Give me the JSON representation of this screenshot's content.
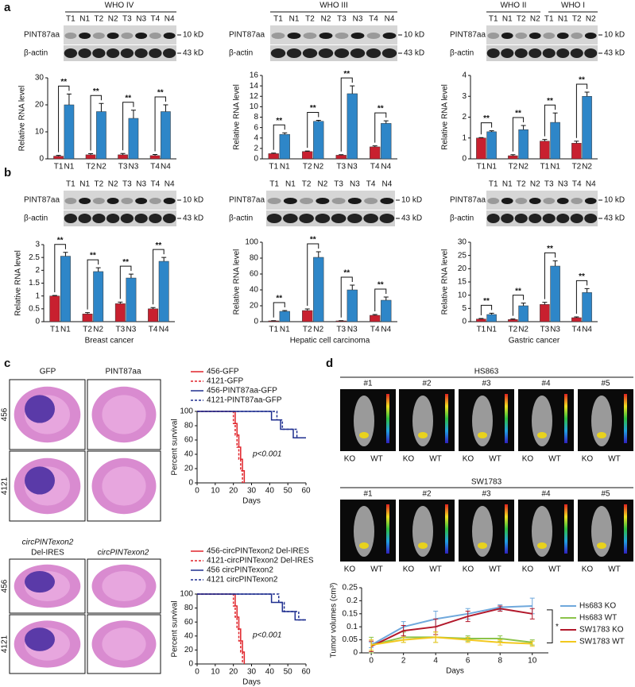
{
  "figure": {
    "panels": [
      "a",
      "b",
      "c",
      "d"
    ],
    "who": [
      "WHO IV",
      "WHO III",
      "WHO II",
      "WHO I"
    ],
    "blots": [
      {
        "lanes": [
          "T1",
          "N1",
          "T2",
          "N2",
          "T3",
          "N3",
          "T4",
          "N4"
        ],
        "rows": [
          "PINT87aa",
          "β-actin"
        ],
        "sizes": [
          "10 kD",
          "43 kD"
        ]
      },
      {
        "lanes": [
          "T1",
          "N1",
          "T2",
          "N2",
          "T3",
          "N3",
          "T4",
          "N4"
        ],
        "rows": [
          "PINT87aa",
          "β-actin"
        ],
        "sizes": [
          "10 kD",
          "43 kD"
        ]
      },
      {
        "lanes": [
          "T1",
          "N1",
          "T2",
          "N2",
          "T1",
          "N1",
          "T2",
          "N2"
        ],
        "rows": [
          "PINT87aa",
          "β-actin"
        ],
        "sizes": [
          "10 kD",
          "43 kD"
        ]
      },
      {
        "lanes": [
          "T1",
          "N1",
          "T2",
          "N2",
          "T3",
          "N3",
          "T4",
          "N4"
        ],
        "rows": [
          "PINT87aa",
          "β-actin"
        ],
        "sizes": [
          "10 kD",
          "43 kD"
        ]
      },
      {
        "lanes": [
          "T1",
          "N1",
          "T2",
          "N2",
          "T3",
          "N3",
          "T4",
          "N4"
        ],
        "rows": [
          "PINT87aa",
          "β-actin"
        ],
        "sizes": [
          "10 kD",
          "43 kD"
        ]
      },
      {
        "lanes": [
          "T1",
          "N1",
          "T2",
          "N2",
          "T3",
          "N3",
          "T4",
          "N4"
        ],
        "rows": [
          "PINT87aa",
          "β-actin"
        ],
        "sizes": [
          "10 kD",
          "43 kD"
        ]
      }
    ],
    "brains": {
      "cols": [
        "GFP",
        "PINT87aa"
      ],
      "rows": [
        "456",
        "4121"
      ],
      "cols2": [
        "circPINTexon2",
        "Del-IRES",
        "circPINTexon2"
      ]
    },
    "mice": {
      "groups": [
        "HS863",
        "SW1783"
      ],
      "ids": [
        "#1",
        "#2",
        "#3",
        "#4",
        "#5"
      ],
      "labels": [
        "KO",
        "WT"
      ]
    }
  },
  "chart_data": [
    {
      "type": "bar",
      "ylabel": "Relative RNA level",
      "categories": [
        "T1",
        "N1",
        "T2",
        "N2",
        "T3",
        "N3",
        "T4",
        "N4"
      ],
      "values": [
        1,
        20,
        1.5,
        17.5,
        1.5,
        15,
        1.2,
        17.5
      ],
      "errors": [
        0.3,
        4,
        0.4,
        3,
        0.5,
        3,
        0.4,
        2.5
      ],
      "colors": [
        "#c8202f",
        "#2e86c8"
      ],
      "annotations": [
        "**",
        "**",
        "**",
        "**"
      ],
      "ylim": [
        0,
        30
      ],
      "yticks": [
        0,
        10,
        20,
        30
      ]
    },
    {
      "type": "bar",
      "ylabel": "Relative RNA level",
      "categories": [
        "T1",
        "N1",
        "T2",
        "N2",
        "T3",
        "N3",
        "T4",
        "N4"
      ],
      "values": [
        1,
        4.7,
        1.4,
        7.2,
        0.7,
        12.5,
        2.3,
        6.8
      ],
      "errors": [
        0.1,
        0.3,
        0.1,
        0.2,
        0.1,
        1.5,
        0.2,
        0.5
      ],
      "colors": [
        "#c8202f",
        "#2e86c8"
      ],
      "annotations": [
        "**",
        "**",
        "**",
        "**"
      ],
      "ylim": [
        0,
        16
      ],
      "yticks": [
        0,
        2,
        4,
        6,
        8,
        10,
        12,
        14,
        16
      ]
    },
    {
      "type": "bar",
      "ylabel": "Relative RNA level",
      "categories": [
        "T1",
        "N1",
        "T2",
        "N2",
        "T1",
        "N1",
        "T2",
        "N2"
      ],
      "values": [
        1,
        1.3,
        0.15,
        1.4,
        0.85,
        1.75,
        0.75,
        3
      ],
      "errors": [
        0.02,
        0.05,
        0.05,
        0.2,
        0.08,
        0.45,
        0.1,
        0.2
      ],
      "colors": [
        "#c8202f",
        "#2e86c8"
      ],
      "annotations": [
        "**",
        "**",
        "**",
        "**"
      ],
      "ylim": [
        0,
        4
      ],
      "yticks": [
        0,
        1,
        2,
        3,
        4
      ]
    },
    {
      "type": "bar",
      "ylabel": "Relative RNA level",
      "xlabel": "Breast cancer",
      "categories": [
        "T1",
        "N1",
        "T2",
        "N2",
        "T3",
        "N3",
        "T4",
        "N4"
      ],
      "values": [
        1,
        2.55,
        0.3,
        1.95,
        0.7,
        1.7,
        0.5,
        2.35
      ],
      "errors": [
        0.02,
        0.15,
        0.05,
        0.15,
        0.06,
        0.15,
        0.05,
        0.15
      ],
      "colors": [
        "#c8202f",
        "#2e86c8"
      ],
      "annotations": [
        "**",
        "**",
        "**",
        "**"
      ],
      "ylim": [
        0,
        3
      ],
      "yticks": [
        0,
        0.5,
        1,
        1.5,
        2,
        2.5,
        3
      ]
    },
    {
      "type": "bar",
      "ylabel": "Relative RNA level",
      "xlabel": "Hepatic cell carcinoma",
      "categories": [
        "T1",
        "N1",
        "T2",
        "N2",
        "T3",
        "N3",
        "T4",
        "N4"
      ],
      "values": [
        1,
        13,
        14,
        81,
        1,
        40,
        8,
        27
      ],
      "errors": [
        0.3,
        1,
        2,
        7,
        0.3,
        6,
        1,
        4
      ],
      "colors": [
        "#c8202f",
        "#2e86c8"
      ],
      "annotations": [
        "**",
        "**",
        "**",
        "**"
      ],
      "ylim": [
        0,
        100
      ],
      "yticks": [
        0,
        20,
        40,
        60,
        80,
        100
      ]
    },
    {
      "type": "bar",
      "ylabel": "Relative RNA level",
      "xlabel": "Gastric cancer",
      "categories": [
        "T1",
        "N1",
        "T2",
        "N2",
        "T3",
        "N3",
        "T4",
        "N4"
      ],
      "values": [
        1,
        2.7,
        0.8,
        6,
        6.5,
        21,
        1.5,
        11
      ],
      "errors": [
        0.2,
        0.5,
        0.2,
        1,
        0.8,
        2,
        0.3,
        1.5
      ],
      "colors": [
        "#c8202f",
        "#2e86c8"
      ],
      "annotations": [
        "**",
        "**",
        "**",
        "**"
      ],
      "ylim": [
        0,
        30
      ],
      "yticks": [
        0,
        5,
        10,
        15,
        20,
        25,
        30
      ]
    },
    {
      "type": "step",
      "ylabel": "Percent survival",
      "xlabel": "Days",
      "annotation": "p<0.001",
      "xlim": [
        0,
        60
      ],
      "xticks": [
        0,
        10,
        20,
        30,
        40,
        50,
        60
      ],
      "ylim": [
        0,
        100
      ],
      "yticks": [
        0,
        20,
        40,
        60,
        80,
        100
      ],
      "series": [
        {
          "name": "456-GFP",
          "color": "#e0242b",
          "style": "solid",
          "x": [
            0,
            21,
            22,
            23,
            24,
            25,
            26
          ],
          "values": [
            100,
            83,
            67,
            50,
            33,
            17,
            0
          ]
        },
        {
          "name": "4121-GFP",
          "color": "#e0242b",
          "style": "dashed",
          "x": [
            0,
            20,
            21,
            22,
            23,
            24,
            25
          ],
          "values": [
            100,
            83,
            67,
            50,
            33,
            17,
            0
          ]
        },
        {
          "name": "456-PINT87aa-GFP",
          "color": "#1f2f8f",
          "style": "solid",
          "x": [
            0,
            41,
            46,
            53,
            60
          ],
          "values": [
            100,
            88,
            75,
            63,
            63
          ]
        },
        {
          "name": "4121-PINT87aa-GFP",
          "color": "#1f2f8f",
          "style": "dashed",
          "x": [
            0,
            44,
            47,
            55,
            58
          ],
          "values": [
            100,
            88,
            75,
            63,
            63
          ]
        }
      ]
    },
    {
      "type": "step",
      "ylabel": "Percent survival",
      "xlabel": "Days",
      "annotation": "p<0.001",
      "xlim": [
        0,
        60
      ],
      "xticks": [
        0,
        10,
        20,
        30,
        40,
        50,
        60
      ],
      "ylim": [
        0,
        100
      ],
      "yticks": [
        0,
        20,
        40,
        60,
        80,
        100
      ],
      "series": [
        {
          "name": "456-circPINTexon2 Del-IRES",
          "color": "#e0242b",
          "style": "solid",
          "x": [
            0,
            21,
            22,
            23,
            24,
            25,
            26
          ],
          "values": [
            100,
            83,
            67,
            50,
            33,
            17,
            0
          ]
        },
        {
          "name": "4121-circPINTexon2 Del-IRES",
          "color": "#e0242b",
          "style": "dashed",
          "x": [
            0,
            20,
            21,
            22,
            23,
            24,
            25
          ],
          "values": [
            100,
            83,
            67,
            50,
            33,
            17,
            0
          ]
        },
        {
          "name": "456 circPINTexon2",
          "color": "#1f2f8f",
          "style": "solid",
          "x": [
            0,
            41,
            47,
            54,
            60
          ],
          "values": [
            100,
            88,
            75,
            63,
            63
          ]
        },
        {
          "name": "4121 circPINTexon2",
          "color": "#1f2f8f",
          "style": "dashed",
          "x": [
            0,
            45,
            48,
            56,
            60
          ],
          "values": [
            100,
            88,
            75,
            63,
            63
          ]
        }
      ]
    },
    {
      "type": "line",
      "ylabel": "Tumor volumes (cm³)",
      "xlabel": "Days",
      "annotation": "*",
      "x": [
        0,
        2,
        4,
        6,
        8,
        10
      ],
      "xlim": [
        -0.6,
        11
      ],
      "xticks": [
        0,
        2,
        4,
        6,
        8,
        10
      ],
      "ylim": [
        0,
        0.25
      ],
      "yticks": [
        0,
        0.05,
        0.1,
        0.15,
        0.2,
        0.25
      ],
      "series": [
        {
          "name": "Hs683 KO",
          "color": "#6fa8dc",
          "values": [
            0.03,
            0.1,
            0.13,
            0.15,
            0.175,
            0.18
          ],
          "errors": [
            0.01,
            0.02,
            0.03,
            0.02,
            0.01,
            0.03
          ]
        },
        {
          "name": "Hs683 WT",
          "color": "#8bc34a",
          "values": [
            0.03,
            0.06,
            0.06,
            0.055,
            0.055,
            0.04
          ],
          "errors": [
            0.03,
            0.02,
            0.02,
            0.01,
            0.01,
            0.01
          ]
        },
        {
          "name": "SW1783 KO",
          "color": "#b2182b",
          "values": [
            0.025,
            0.085,
            0.1,
            0.14,
            0.17,
            0.15
          ],
          "errors": [
            0.02,
            0.02,
            0.03,
            0.02,
            0.01,
            0.02
          ]
        },
        {
          "name": "SW1783 WT",
          "color": "#f2c81e",
          "values": [
            0.03,
            0.05,
            0.06,
            0.05,
            0.04,
            0.035
          ],
          "errors": [
            0.02,
            0.01,
            0.02,
            0.01,
            0.01,
            0.01
          ]
        }
      ]
    }
  ]
}
